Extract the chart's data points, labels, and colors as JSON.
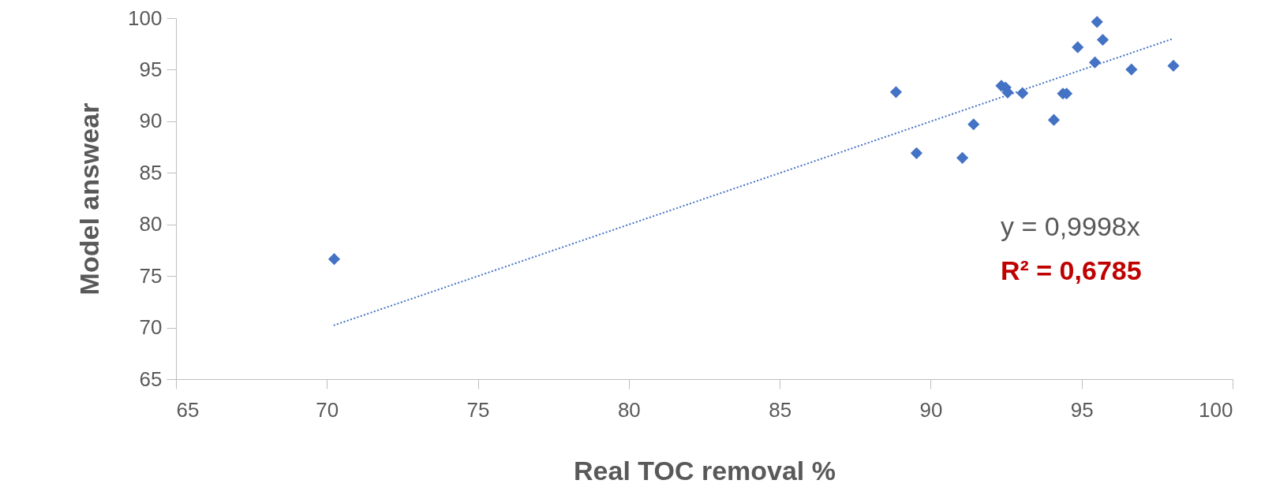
{
  "chart_data": {
    "type": "scatter",
    "xlabel": "Real TOC removal %",
    "ylabel": "Model answear",
    "xlim": [
      65,
      100
    ],
    "xticks": [
      65,
      70,
      75,
      80,
      85,
      90,
      95,
      100
    ],
    "ylim": [
      65,
      100
    ],
    "yticks": [
      65,
      70,
      75,
      80,
      85,
      90,
      95,
      100
    ],
    "marker": "diamond",
    "series": [
      {
        "color": "#4472c4",
        "x": [
          70.24,
          88.85,
          89.53,
          91.05,
          91.42,
          92.34,
          92.48,
          92.55,
          93.04,
          94.08,
          94.38,
          94.5,
          94.87,
          95.44,
          95.51,
          95.7,
          96.65,
          98.04
        ],
        "values": [
          76.64,
          92.83,
          86.91,
          86.45,
          89.7,
          93.44,
          93.27,
          92.79,
          92.73,
          90.13,
          92.68,
          92.68,
          97.18,
          95.71,
          99.63,
          97.9,
          95.02,
          95.38
        ]
      },
      {
        "type": "line",
        "color": "#4472c4",
        "line_style": "dotted",
        "marker": "none",
        "x": [
          70.22,
          98.0
        ],
        "values": [
          70.21,
          97.98
        ]
      }
    ],
    "annotations": [
      "y = 0,9998x",
      "R² = 0,6785"
    ]
  }
}
